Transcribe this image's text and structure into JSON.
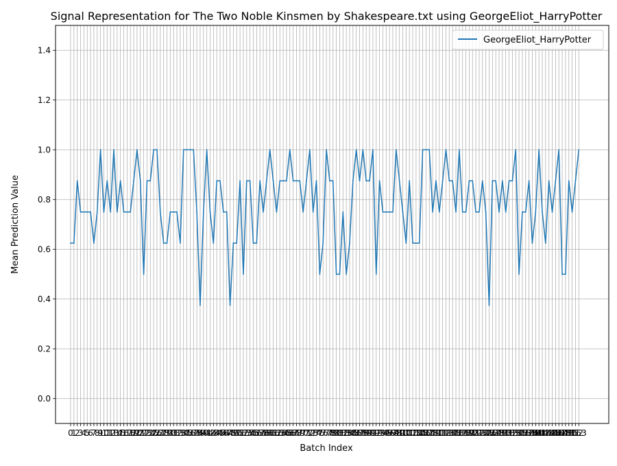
{
  "chart_data": {
    "type": "line",
    "title": "Signal Representation for The Two Noble Kinsmen by Shakespeare.txt using GeorgeEliot_HarryPotter",
    "xlabel": "Batch Index",
    "ylabel": "Mean Prediction Value",
    "ylim": [
      -0.1,
      1.5
    ],
    "yticks": [
      "0.0",
      "0.2",
      "0.4",
      "0.6",
      "0.8",
      "1.0",
      "1.2",
      "1.4"
    ],
    "grid": true,
    "legend_position": "top-right",
    "x": [
      0,
      1,
      2,
      3,
      4,
      5,
      6,
      7,
      8,
      9,
      10,
      11,
      12,
      13,
      14,
      15,
      16,
      17,
      18,
      19,
      20,
      21,
      22,
      23,
      24,
      25,
      26,
      27,
      28,
      29,
      30,
      31,
      32,
      33,
      34,
      35,
      36,
      37,
      38,
      39,
      40,
      41,
      42,
      43,
      44,
      45,
      46,
      47,
      48,
      49,
      50,
      51,
      52,
      53,
      54,
      55,
      56,
      57,
      58,
      59,
      60,
      61,
      62,
      63,
      64,
      65,
      66,
      67,
      68,
      69,
      70,
      71,
      72,
      73,
      74,
      75,
      76,
      77,
      78,
      79,
      80,
      81,
      82,
      83,
      84,
      85,
      86,
      87,
      88,
      89,
      90,
      91,
      92,
      93,
      94,
      95,
      96,
      97,
      98,
      99,
      100,
      101,
      102,
      103,
      104,
      105,
      106,
      107,
      108,
      109,
      110,
      111,
      112,
      113,
      114,
      115,
      116,
      117,
      118,
      119,
      120,
      121,
      122,
      123,
      124,
      125,
      126,
      127,
      128,
      129,
      130,
      131,
      132,
      133,
      134,
      135,
      136,
      137,
      138,
      139,
      140,
      141,
      142,
      143,
      144,
      145,
      146,
      147,
      148,
      149,
      150,
      151,
      152,
      153
    ],
    "series": [
      {
        "name": "GeorgeEliot_HarryPotter",
        "color": "#1f77b4",
        "values": [
          0.625,
          0.625,
          0.875,
          0.75,
          0.75,
          0.75,
          0.75,
          0.625,
          0.75,
          1.0,
          0.75,
          0.875,
          0.75,
          1.0,
          0.75,
          0.875,
          0.75,
          0.75,
          0.75,
          0.875,
          1.0,
          0.875,
          0.5,
          0.875,
          0.875,
          1.0,
          1.0,
          0.75,
          0.625,
          0.625,
          0.75,
          0.75,
          0.75,
          0.625,
          1.0,
          1.0,
          1.0,
          1.0,
          0.75,
          0.375,
          0.75,
          1.0,
          0.75,
          0.625,
          0.875,
          0.875,
          0.75,
          0.75,
          0.375,
          0.625,
          0.625,
          0.875,
          0.5,
          0.875,
          0.875,
          0.625,
          0.625,
          0.875,
          0.75,
          0.875,
          1.0,
          0.875,
          0.75,
          0.875,
          0.875,
          0.875,
          1.0,
          0.875,
          0.875,
          0.875,
          0.75,
          0.875,
          1.0,
          0.75,
          0.875,
          0.5,
          0.625,
          1.0,
          0.875,
          0.875,
          0.5,
          0.5,
          0.75,
          0.5,
          0.625,
          0.875,
          1.0,
          0.875,
          1.0,
          0.875,
          0.875,
          1.0,
          0.5,
          0.875,
          0.75,
          0.75,
          0.75,
          0.75,
          1.0,
          0.875,
          0.75,
          0.625,
          0.875,
          0.625,
          0.625,
          0.625,
          1.0,
          1.0,
          1.0,
          0.75,
          0.875,
          0.75,
          0.875,
          1.0,
          0.875,
          0.875,
          0.75,
          1.0,
          0.75,
          0.75,
          0.875,
          0.875,
          0.75,
          0.75,
          0.875,
          0.75,
          0.375,
          0.875,
          0.875,
          0.75,
          0.875,
          0.75,
          0.875,
          0.875,
          1.0,
          0.5,
          0.75,
          0.75,
          0.875,
          0.625,
          0.75,
          1.0,
          0.75,
          0.625,
          0.875,
          0.75,
          0.875,
          1.0,
          0.5,
          0.5,
          0.875,
          0.75,
          0.875,
          1.0
        ]
      }
    ]
  }
}
